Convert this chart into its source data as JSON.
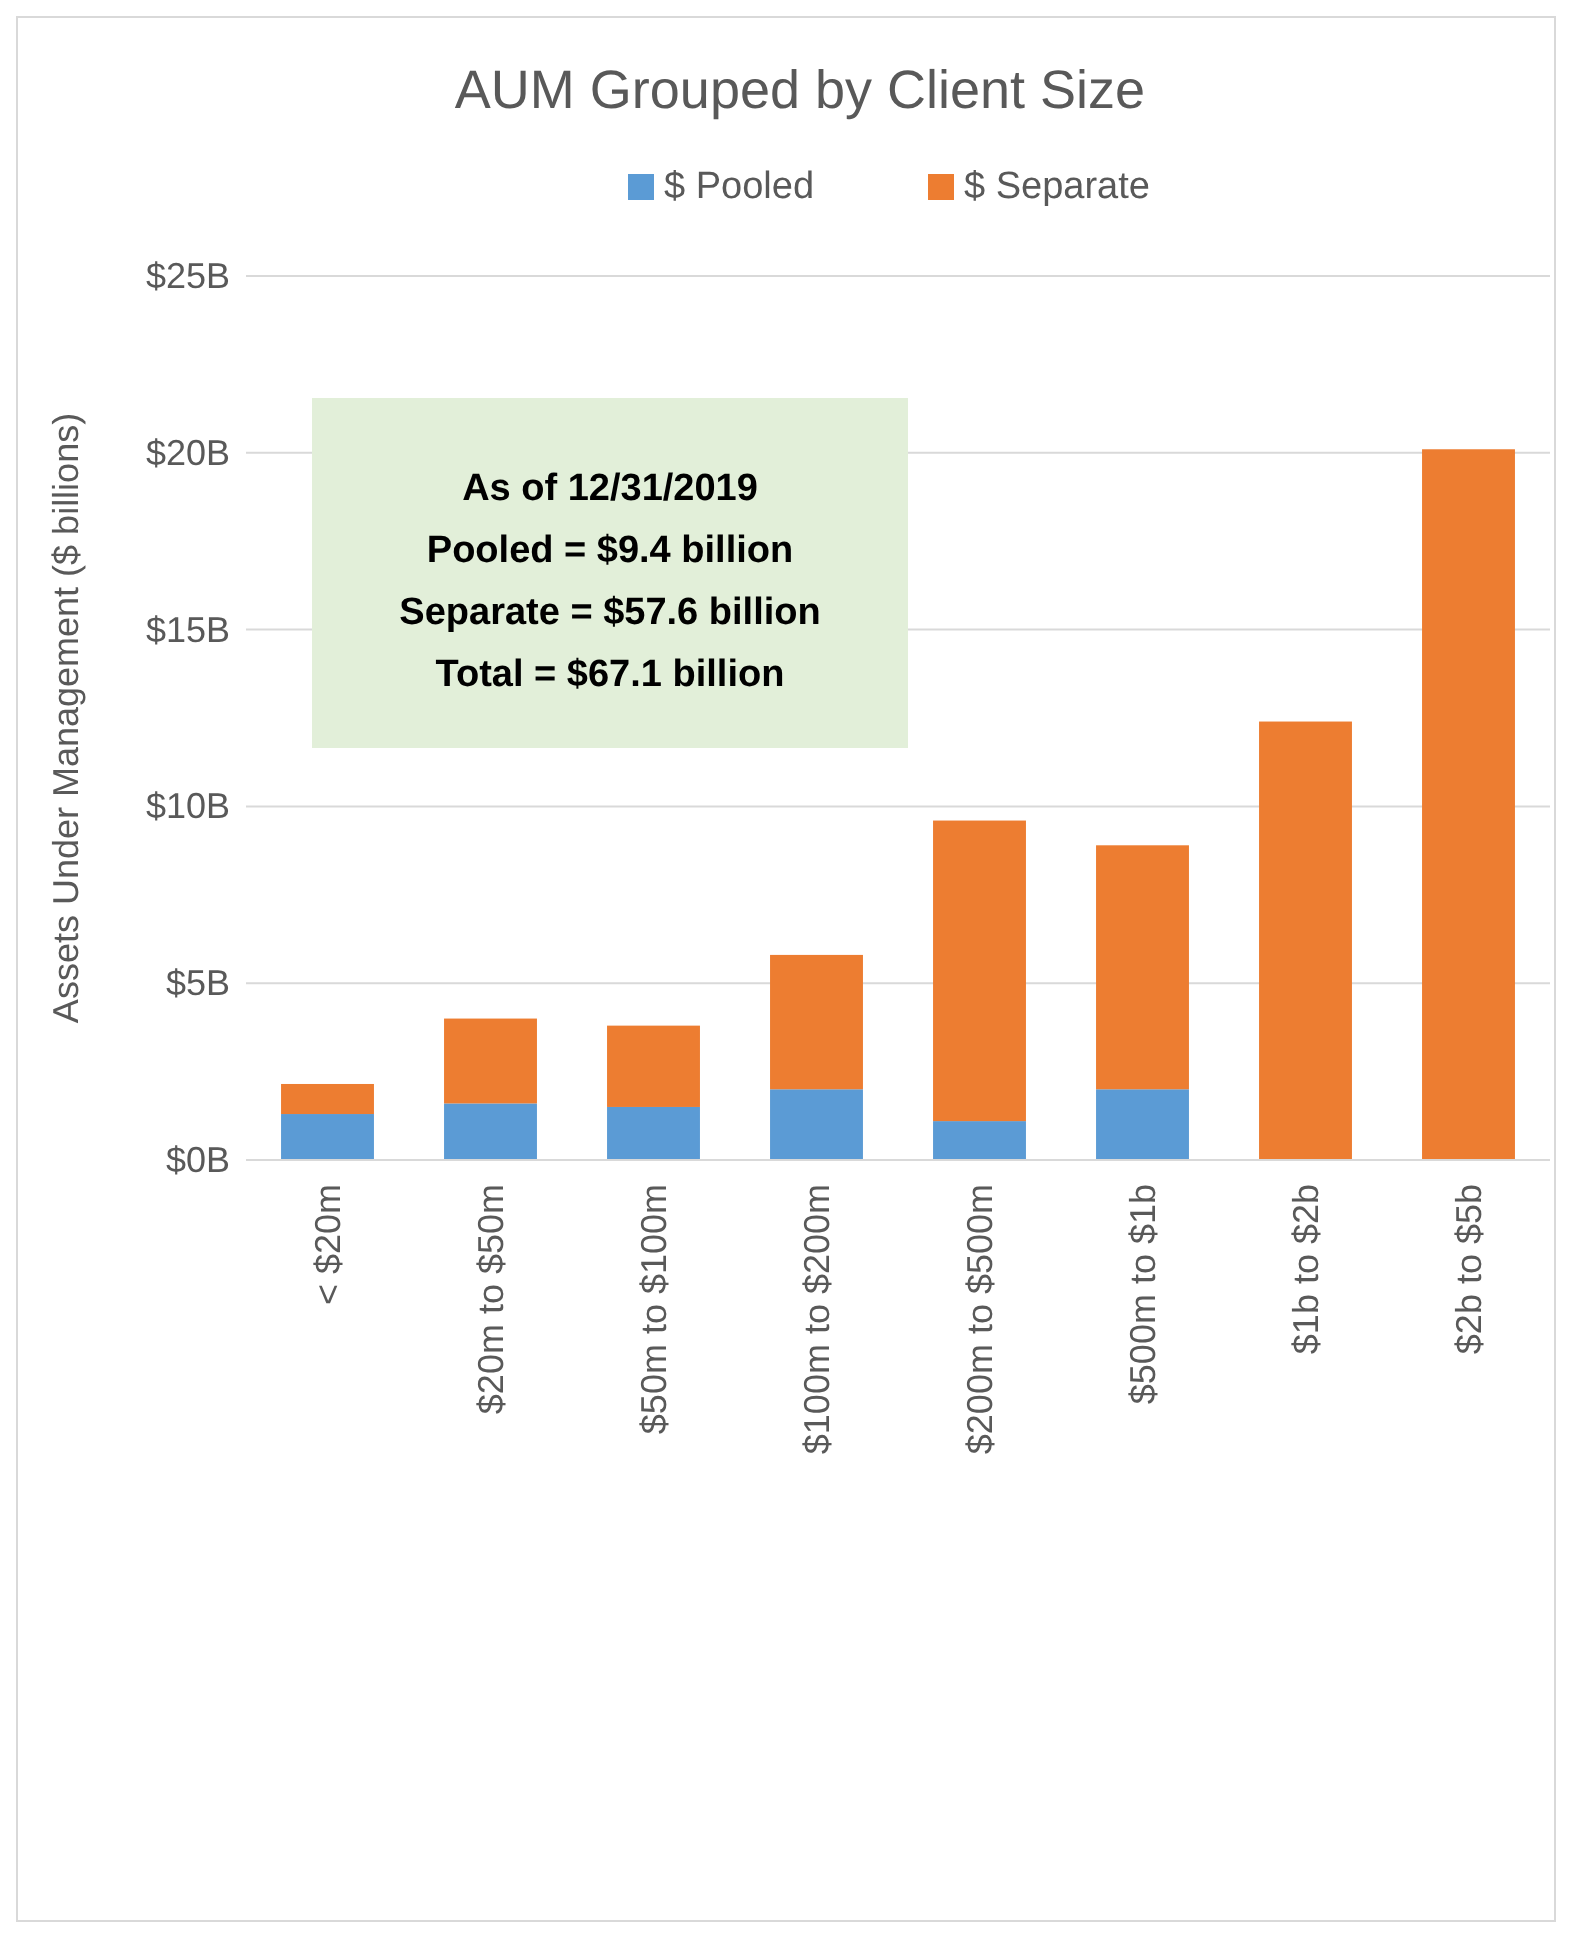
{
  "chart_data": {
    "type": "bar",
    "title": "AUM Grouped by Client Size",
    "ylabel": "Assets Under Management ($ billions)",
    "categories": [
      "< $20m",
      "$20m to $50m",
      "$50m to $100m",
      "$100m to $200m",
      "$200m to $500m",
      "$500m to $1b",
      "$1b to $2b",
      "$2b to $5b"
    ],
    "series": [
      {
        "name": "$ Pooled",
        "color": "#5b9bd5",
        "values": [
          1.3,
          1.6,
          1.5,
          2.0,
          1.1,
          2.0,
          0,
          0
        ]
      },
      {
        "name": "$ Separate",
        "color": "#ed7d31",
        "values": [
          0.85,
          2.4,
          2.3,
          3.8,
          8.5,
          6.9,
          12.4,
          20.1
        ]
      }
    ],
    "stacked": true,
    "ylim": [
      0,
      25
    ],
    "yticks": [
      {
        "value": 0,
        "label": "$0B"
      },
      {
        "value": 5,
        "label": "$5B"
      },
      {
        "value": 10,
        "label": "$10B"
      },
      {
        "value": 15,
        "label": "$15B"
      },
      {
        "value": 20,
        "label": "$20B"
      },
      {
        "value": 25,
        "label": "$25B"
      }
    ],
    "grid": "y",
    "legend": "top",
    "annotations": [
      "As of 12/31/2019",
      "Pooled = $9.4 billion",
      "Separate = $57.6 billion",
      "Total = $67.1 billion"
    ]
  }
}
